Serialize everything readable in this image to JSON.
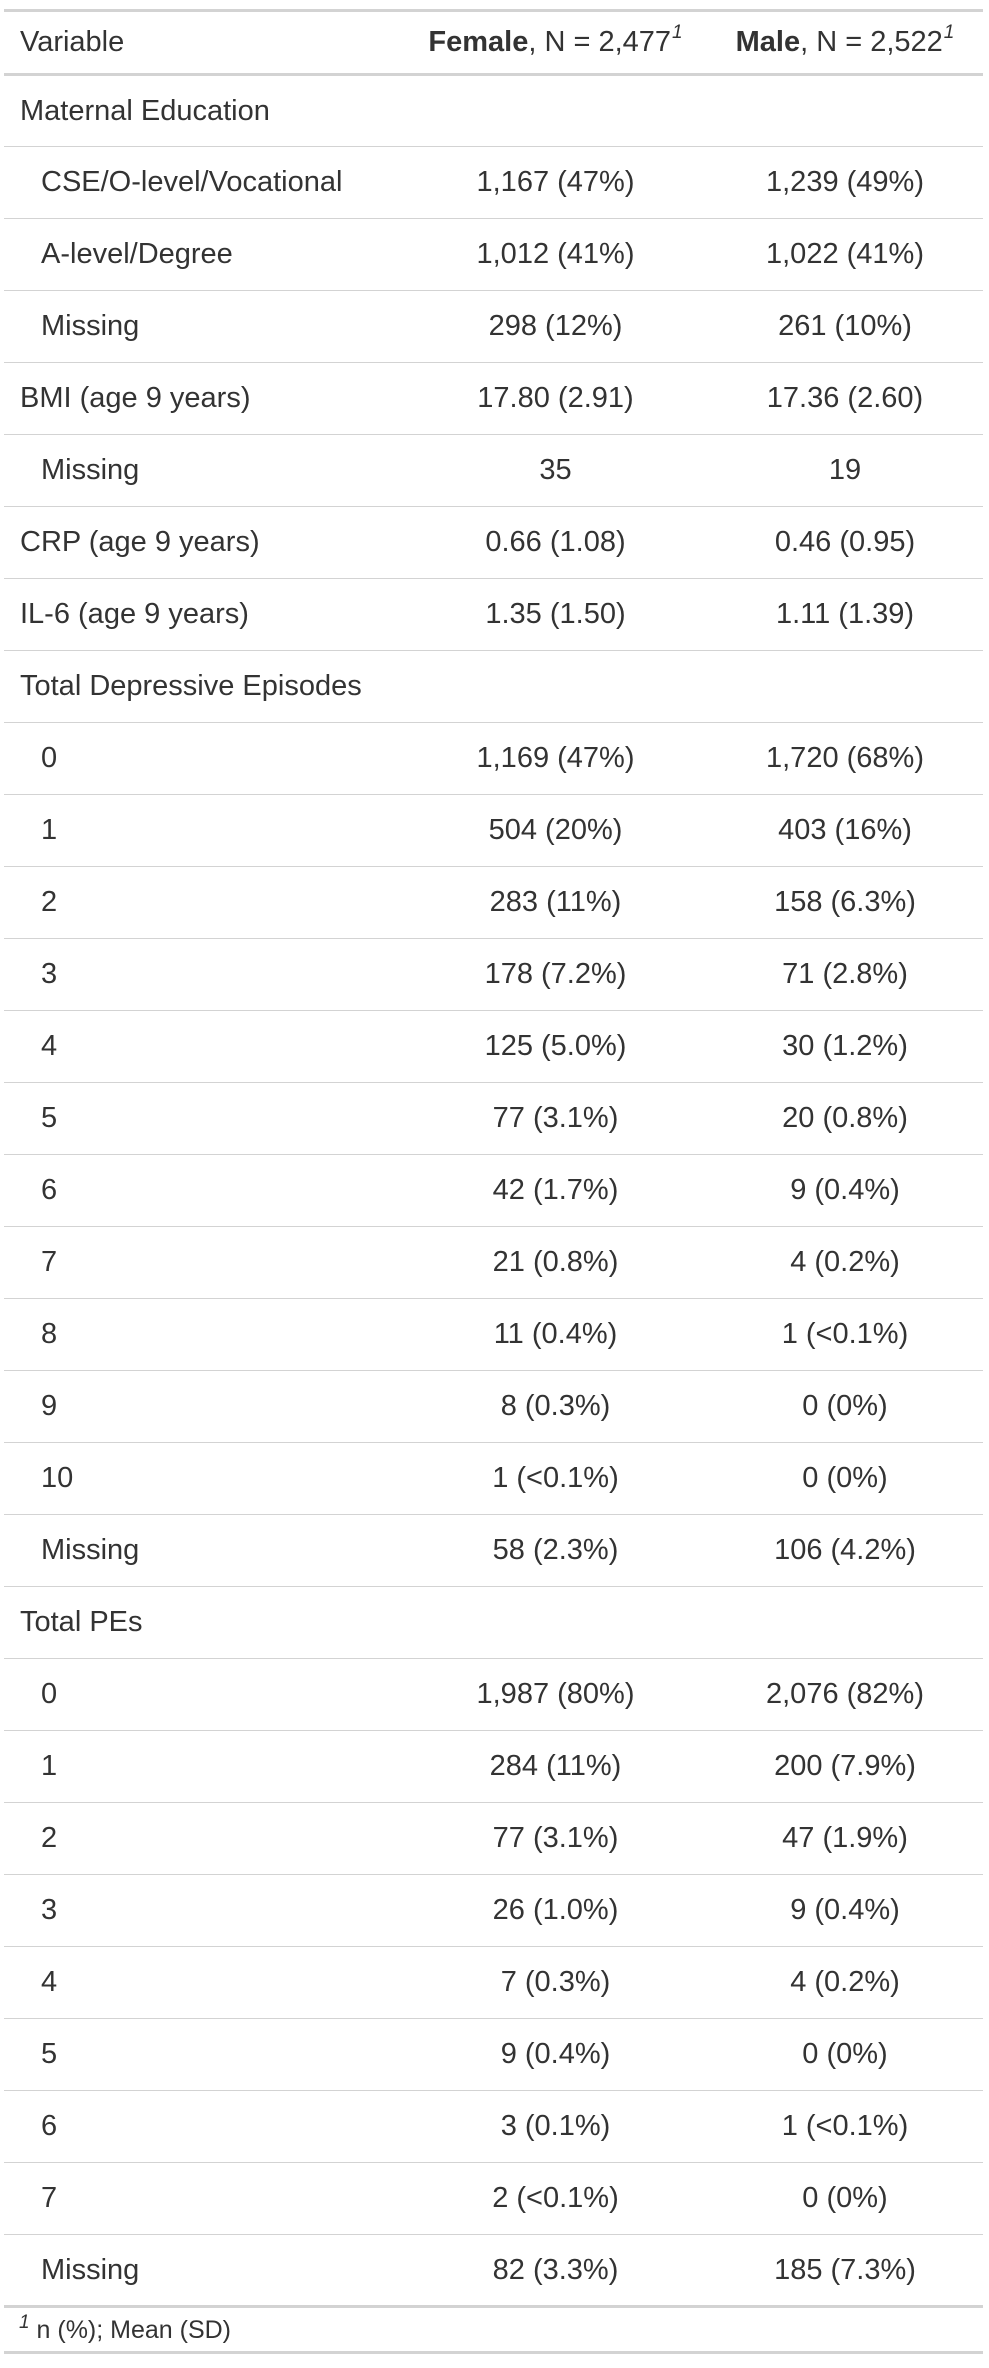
{
  "header": {
    "variable": "Variable",
    "female_label": "Female",
    "female_n": ", N = 2,477",
    "male_label": "Male",
    "male_n": ", N = 2,522",
    "footnote_mark": "1"
  },
  "rows": [
    {
      "label": "Maternal Education",
      "female": "",
      "male": "",
      "indent": false
    },
    {
      "label": "CSE/O-level/Vocational",
      "female": "1,167 (47%)",
      "male": "1,239 (49%)",
      "indent": true
    },
    {
      "label": "A-level/Degree",
      "female": "1,012 (41%)",
      "male": "1,022 (41%)",
      "indent": true
    },
    {
      "label": "Missing",
      "female": "298 (12%)",
      "male": "261 (10%)",
      "indent": true
    },
    {
      "label": "BMI (age 9 years)",
      "female": "17.80 (2.91)",
      "male": "17.36 (2.60)",
      "indent": false
    },
    {
      "label": "Missing",
      "female": "35",
      "male": "19",
      "indent": true
    },
    {
      "label": "CRP (age 9 years)",
      "female": "0.66 (1.08)",
      "male": "0.46 (0.95)",
      "indent": false
    },
    {
      "label": "IL-6 (age 9 years)",
      "female": "1.35 (1.50)",
      "male": "1.11 (1.39)",
      "indent": false
    },
    {
      "label": "Total Depressive Episodes",
      "female": "",
      "male": "",
      "indent": false
    },
    {
      "label": "0",
      "female": "1,169 (47%)",
      "male": "1,720 (68%)",
      "indent": true
    },
    {
      "label": "1",
      "female": "504 (20%)",
      "male": "403 (16%)",
      "indent": true
    },
    {
      "label": "2",
      "female": "283 (11%)",
      "male": "158 (6.3%)",
      "indent": true
    },
    {
      "label": "3",
      "female": "178 (7.2%)",
      "male": "71 (2.8%)",
      "indent": true
    },
    {
      "label": "4",
      "female": "125 (5.0%)",
      "male": "30 (1.2%)",
      "indent": true
    },
    {
      "label": "5",
      "female": "77 (3.1%)",
      "male": "20 (0.8%)",
      "indent": true
    },
    {
      "label": "6",
      "female": "42 (1.7%)",
      "male": "9 (0.4%)",
      "indent": true
    },
    {
      "label": "7",
      "female": "21 (0.8%)",
      "male": "4 (0.2%)",
      "indent": true
    },
    {
      "label": "8",
      "female": "11 (0.4%)",
      "male": "1 (<0.1%)",
      "indent": true
    },
    {
      "label": "9",
      "female": "8 (0.3%)",
      "male": "0 (0%)",
      "indent": true
    },
    {
      "label": "10",
      "female": "1 (<0.1%)",
      "male": "0 (0%)",
      "indent": true
    },
    {
      "label": "Missing",
      "female": "58 (2.3%)",
      "male": "106 (4.2%)",
      "indent": true
    },
    {
      "label": "Total PEs",
      "female": "",
      "male": "",
      "indent": false
    },
    {
      "label": "0",
      "female": "1,987 (80%)",
      "male": "2,076 (82%)",
      "indent": true
    },
    {
      "label": "1",
      "female": "284 (11%)",
      "male": "200 (7.9%)",
      "indent": true
    },
    {
      "label": "2",
      "female": "77 (3.1%)",
      "male": "47 (1.9%)",
      "indent": true
    },
    {
      "label": "3",
      "female": "26 (1.0%)",
      "male": "9 (0.4%)",
      "indent": true
    },
    {
      "label": "4",
      "female": "7 (0.3%)",
      "male": "4 (0.2%)",
      "indent": true
    },
    {
      "label": "5",
      "female": "9 (0.4%)",
      "male": "0 (0%)",
      "indent": true
    },
    {
      "label": "6",
      "female": "3 (0.1%)",
      "male": "1 (<0.1%)",
      "indent": true
    },
    {
      "label": "7",
      "female": "2 (<0.1%)",
      "male": "0 (0%)",
      "indent": true
    },
    {
      "label": "Missing",
      "female": "82 (3.3%)",
      "male": "185 (7.3%)",
      "indent": true
    }
  ],
  "footnote": {
    "mark": "1",
    "text": " n (%); Mean (SD)"
  },
  "colors": {
    "text": "#333333",
    "rule": "#d3d3d3"
  }
}
